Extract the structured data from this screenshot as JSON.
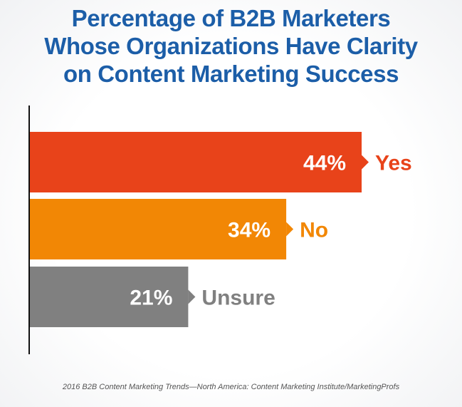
{
  "title_lines": [
    "Percentage of B2B Marketers",
    "Whose Organizations Have Clarity",
    "on Content Marketing Success"
  ],
  "source": "2016 B2B Content Marketing Trends—North America: Content Marketing Institute/MarketingProfs",
  "chart_data": {
    "type": "bar",
    "orientation": "horizontal",
    "title": "Percentage of B2B Marketers Whose Organizations Have Clarity on Content Marketing Success",
    "categories": [
      "Yes",
      "No",
      "Unsure"
    ],
    "values": [
      44,
      34,
      21
    ],
    "value_labels": [
      "44%",
      "34%",
      "21%"
    ],
    "xlim": [
      0,
      50
    ],
    "grid": false,
    "legend": "none",
    "colors": [
      "#e8431a",
      "#f28705",
      "#808080"
    ]
  }
}
